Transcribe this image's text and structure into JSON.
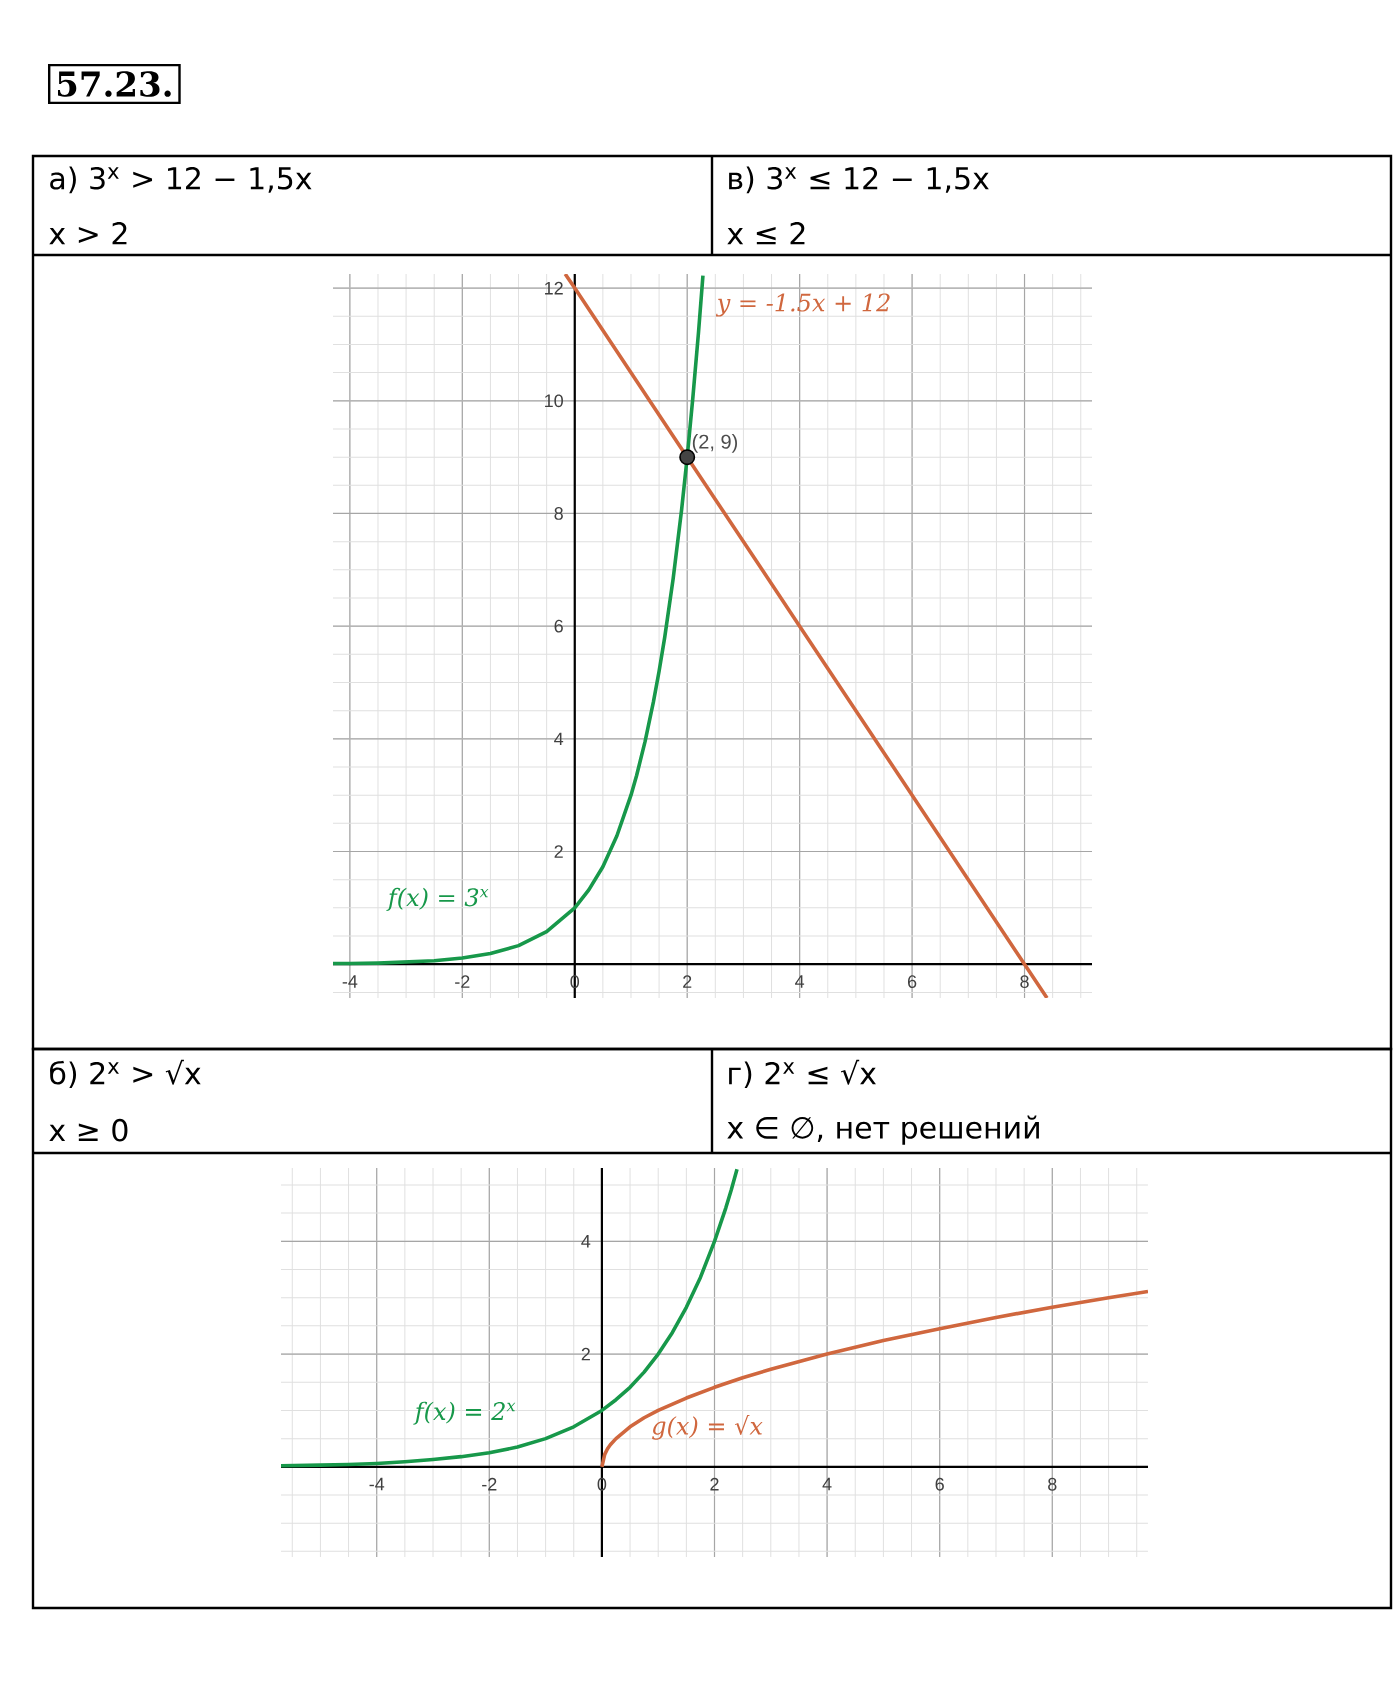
{
  "chart_data": [
    {
      "type": "line",
      "title": "57.23.",
      "annotations": [
        "а) 3$^{x}$ > 12 − 1,5x",
        "x > 2",
        "в) 3$^{x}$ ≤ 12 − 1,5x",
        "x ≤ 2",
        {
          "text": "(2, 9)",
          "x": 2,
          "y": 9
        }
      ],
      "xlim": [
        -4.3,
        9.2
      ],
      "ylim": [
        -0.6,
        12.25
      ],
      "xticks": [
        -4,
        -2,
        0,
        2,
        4,
        6,
        8
      ],
      "yticks": [
        2,
        4,
        6,
        8,
        10,
        12
      ],
      "grid": true,
      "series": [
        {
          "name": "f(x) = 3$^{x}$",
          "color": "#17984a",
          "x": [
            -4.3,
            -4,
            -3.5,
            -3,
            -2.5,
            -2,
            -1.5,
            -1,
            -0.5,
            0,
            0.25,
            0.5,
            0.75,
            1,
            1.1,
            1.25,
            1.4,
            1.5,
            1.6,
            1.75,
            1.9,
            2,
            2.1,
            2.2,
            2.28
          ],
          "values": [
            0.01,
            0.01,
            0.02,
            0.04,
            0.06,
            0.11,
            0.19,
            0.33,
            0.58,
            1,
            1.32,
            1.73,
            2.28,
            3,
            3.35,
            3.95,
            4.66,
            5.2,
            5.8,
            6.84,
            8.06,
            9,
            10.05,
            11.2,
            12.22
          ]
        },
        {
          "name": "y = -1.5x + 12",
          "color": "#d0673e",
          "x": [
            -0.17,
            0,
            2,
            4,
            8,
            8.4
          ],
          "values": [
            12.25,
            12,
            9,
            6,
            0,
            -0.6
          ]
        },
        {
          "type": "scatter",
          "color": "#444444",
          "x": [
            2
          ],
          "values": [
            9
          ]
        }
      ]
    },
    {
      "type": "line",
      "annotations": [
        "б) 2$^{x}$ > √x",
        "x ≥ 0",
        "г) 2$^{x}$ ≤ √x",
        "x ∈ ∅, нет решений"
      ],
      "xlim": [
        -5.7,
        9.7
      ],
      "ylim": [
        -1.6,
        5.3
      ],
      "xticks": [
        -4,
        -2,
        0,
        2,
        4,
        6,
        8
      ],
      "yticks": [
        2,
        4
      ],
      "grid": true,
      "series": [
        {
          "name": "f(x) = 2$^{x}$",
          "color": "#17984a",
          "x": [
            -5.7,
            -5,
            -4.5,
            -4,
            -3.5,
            -3,
            -2.5,
            -2,
            -1.5,
            -1,
            -0.5,
            0,
            0.25,
            0.5,
            0.75,
            1,
            1.25,
            1.5,
            1.75,
            2,
            2.2,
            2.3,
            2.4
          ],
          "values": [
            0.02,
            0.03,
            0.04,
            0.06,
            0.09,
            0.13,
            0.18,
            0.25,
            0.35,
            0.5,
            0.71,
            1,
            1.19,
            1.41,
            1.68,
            2,
            2.38,
            2.83,
            3.36,
            4,
            4.59,
            4.92,
            5.28
          ]
        },
        {
          "name": "g(x) = √x",
          "color": "#d0673e",
          "x": [
            0,
            0.05,
            0.1,
            0.15,
            0.25,
            0.5,
            0.75,
            1,
            1.5,
            2,
            2.5,
            3,
            4,
            5,
            6,
            7,
            8,
            9,
            9.7
          ],
          "values": [
            0,
            0.22,
            0.32,
            0.39,
            0.5,
            0.71,
            0.87,
            1,
            1.22,
            1.41,
            1.58,
            1.73,
            2,
            2.24,
            2.45,
            2.65,
            2.83,
            3,
            3.11
          ]
        }
      ]
    }
  ]
}
